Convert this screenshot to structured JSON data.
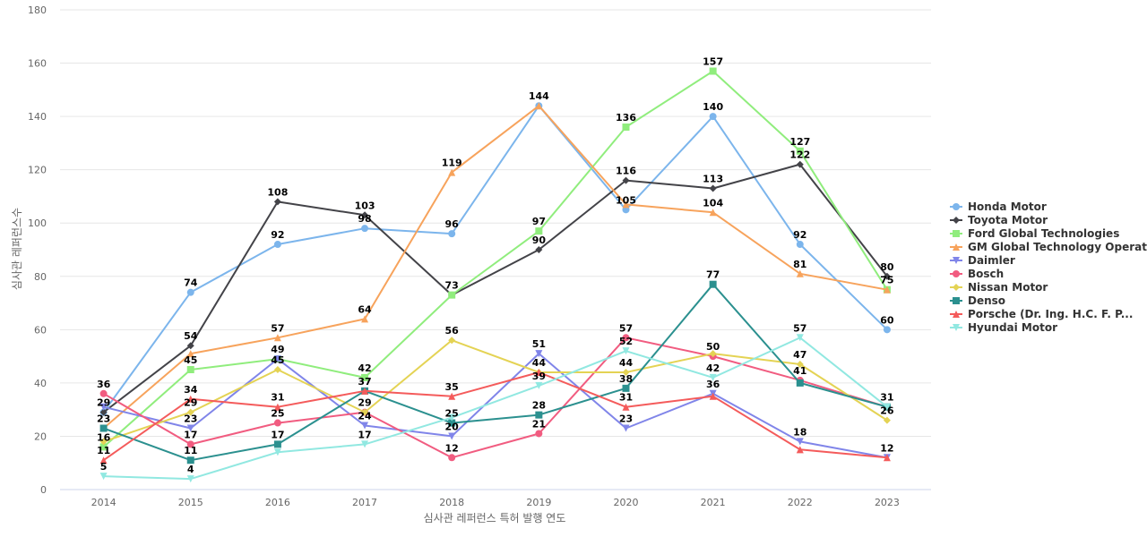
{
  "chart_data": {
    "type": "line",
    "x": [
      "2014",
      "2015",
      "2016",
      "2017",
      "2018",
      "2019",
      "2020",
      "2021",
      "2022",
      "2023"
    ],
    "xlabel": "심사관 레퍼런스 특허 발행 연도",
    "ylabel": "심사관 레퍼런스수",
    "ylim": [
      0,
      180
    ],
    "yticks": [
      0,
      20,
      40,
      60,
      80,
      100,
      120,
      140,
      160,
      180
    ],
    "grid": true,
    "legend_position": "right",
    "series": [
      {
        "name": "Honda Motor",
        "color": "#7cb5ec",
        "marker": "circle",
        "values": [
          29,
          74,
          92,
          98,
          96,
          144,
          105,
          140,
          92,
          60
        ]
      },
      {
        "name": "Toyota Motor",
        "color": "#434348",
        "marker": "diamond",
        "values": [
          29,
          54,
          108,
          103,
          73,
          90,
          116,
          113,
          122,
          80
        ]
      },
      {
        "name": "Ford Global Technologies",
        "color": "#90ed7d",
        "marker": "square",
        "values": [
          16,
          45,
          49,
          42,
          73,
          97,
          136,
          157,
          127,
          75
        ]
      },
      {
        "name": "GM Global Technology Operat...",
        "color": "#f7a35c",
        "marker": "triangle",
        "values": [
          23,
          51,
          57,
          64,
          119,
          144,
          107,
          104,
          81,
          75
        ]
      },
      {
        "name": "Daimler",
        "color": "#8085e9",
        "marker": "triangle-down",
        "values": [
          31,
          23,
          49,
          24,
          20,
          51,
          23,
          36,
          18,
          12
        ]
      },
      {
        "name": "Bosch",
        "color": "#f15c80",
        "marker": "circle",
        "values": [
          36,
          17,
          25,
          29,
          12,
          21,
          57,
          50,
          41,
          31
        ]
      },
      {
        "name": "Nissan Motor",
        "color": "#e4d354",
        "marker": "diamond",
        "values": [
          18,
          29,
          45,
          29,
          56,
          44,
          44,
          51,
          47,
          26
        ]
      },
      {
        "name": "Denso",
        "color": "#2b908f",
        "marker": "square",
        "values": [
          23,
          11,
          17,
          37,
          25,
          28,
          38,
          77,
          40,
          31
        ]
      },
      {
        "name": "Porsche (Dr. Ing. H.C. F. P...",
        "color": "#f45b5b",
        "marker": "triangle",
        "values": [
          11,
          34,
          31,
          37,
          35,
          44,
          31,
          35,
          15,
          12
        ]
      },
      {
        "name": "Hyundai Motor",
        "color": "#91e8e1",
        "marker": "triangle-down",
        "values": [
          5,
          4,
          14,
          17,
          27,
          39,
          52,
          42,
          57,
          31
        ]
      }
    ],
    "data_labels": [
      {
        "text": "36",
        "series": 5,
        "x": 0
      },
      {
        "text": "29",
        "series": 0,
        "x": 0
      },
      {
        "text": "23",
        "series": 3,
        "x": 0
      },
      {
        "text": "16",
        "series": 2,
        "x": 0
      },
      {
        "text": "11",
        "series": 8,
        "x": 0
      },
      {
        "text": "5",
        "series": 9,
        "x": 0
      },
      {
        "text": "74",
        "series": 0,
        "x": 1
      },
      {
        "text": "54",
        "series": 1,
        "x": 1
      },
      {
        "text": "45",
        "series": 2,
        "x": 1
      },
      {
        "text": "34",
        "series": 8,
        "x": 1
      },
      {
        "text": "29",
        "series": 6,
        "x": 1
      },
      {
        "text": "23",
        "series": 4,
        "x": 1
      },
      {
        "text": "17",
        "series": 5,
        "x": 1
      },
      {
        "text": "11",
        "series": 7,
        "x": 1
      },
      {
        "text": "4",
        "series": 9,
        "x": 1
      },
      {
        "text": "108",
        "series": 1,
        "x": 2
      },
      {
        "text": "92",
        "series": 0,
        "x": 2
      },
      {
        "text": "57",
        "series": 3,
        "x": 2
      },
      {
        "text": "49",
        "series": 4,
        "x": 2
      },
      {
        "text": "45",
        "series": 6,
        "x": 2
      },
      {
        "text": "31",
        "series": 8,
        "x": 2
      },
      {
        "text": "25",
        "series": 5,
        "x": 2
      },
      {
        "text": "17",
        "series": 7,
        "x": 2
      },
      {
        "text": "103",
        "series": 1,
        "x": 3
      },
      {
        "text": "98",
        "series": 0,
        "x": 3
      },
      {
        "text": "64",
        "series": 3,
        "x": 3
      },
      {
        "text": "42",
        "series": 2,
        "x": 3
      },
      {
        "text": "37",
        "series": 7,
        "x": 3
      },
      {
        "text": "29",
        "series": 5,
        "x": 3
      },
      {
        "text": "24",
        "series": 4,
        "x": 3
      },
      {
        "text": "17",
        "series": 9,
        "x": 3
      },
      {
        "text": "119",
        "series": 3,
        "x": 4
      },
      {
        "text": "96",
        "series": 0,
        "x": 4
      },
      {
        "text": "73",
        "series": 1,
        "x": 4
      },
      {
        "text": "56",
        "series": 6,
        "x": 4
      },
      {
        "text": "35",
        "series": 8,
        "x": 4
      },
      {
        "text": "25",
        "series": 7,
        "x": 4
      },
      {
        "text": "20",
        "series": 4,
        "x": 4
      },
      {
        "text": "12",
        "series": 5,
        "x": 4
      },
      {
        "text": "144",
        "series": 3,
        "x": 5
      },
      {
        "text": "97",
        "series": 2,
        "x": 5
      },
      {
        "text": "90",
        "series": 1,
        "x": 5
      },
      {
        "text": "51",
        "series": 4,
        "x": 5
      },
      {
        "text": "44",
        "series": 8,
        "x": 5
      },
      {
        "text": "39",
        "series": 9,
        "x": 5
      },
      {
        "text": "28",
        "series": 7,
        "x": 5
      },
      {
        "text": "21",
        "series": 5,
        "x": 5
      },
      {
        "text": "136",
        "series": 2,
        "x": 6
      },
      {
        "text": "116",
        "series": 1,
        "x": 6
      },
      {
        "text": "105",
        "series": 0,
        "x": 6
      },
      {
        "text": "57",
        "series": 5,
        "x": 6
      },
      {
        "text": "52",
        "series": 9,
        "x": 6
      },
      {
        "text": "44",
        "series": 6,
        "x": 6
      },
      {
        "text": "38",
        "series": 7,
        "x": 6
      },
      {
        "text": "31",
        "series": 8,
        "x": 6
      },
      {
        "text": "23",
        "series": 4,
        "x": 6
      },
      {
        "text": "157",
        "series": 2,
        "x": 7
      },
      {
        "text": "140",
        "series": 0,
        "x": 7
      },
      {
        "text": "113",
        "series": 1,
        "x": 7
      },
      {
        "text": "104",
        "series": 3,
        "x": 7
      },
      {
        "text": "77",
        "series": 7,
        "x": 7
      },
      {
        "text": "50",
        "series": 5,
        "x": 7
      },
      {
        "text": "42",
        "series": 9,
        "x": 7
      },
      {
        "text": "36",
        "series": 4,
        "x": 7
      },
      {
        "text": "127",
        "series": 2,
        "x": 8
      },
      {
        "text": "122",
        "series": 1,
        "x": 8
      },
      {
        "text": "92",
        "series": 0,
        "x": 8
      },
      {
        "text": "81",
        "series": 3,
        "x": 8
      },
      {
        "text": "57",
        "series": 9,
        "x": 8
      },
      {
        "text": "47",
        "series": 6,
        "x": 8
      },
      {
        "text": "41",
        "series": 5,
        "x": 8
      },
      {
        "text": "18",
        "series": 4,
        "x": 8
      },
      {
        "text": "80",
        "series": 1,
        "x": 9
      },
      {
        "text": "75",
        "series": 3,
        "x": 9
      },
      {
        "text": "60",
        "series": 0,
        "x": 9
      },
      {
        "text": "31",
        "series": 5,
        "x": 9
      },
      {
        "text": "26",
        "series": 6,
        "x": 9
      },
      {
        "text": "12",
        "series": 4,
        "x": 9
      }
    ]
  }
}
